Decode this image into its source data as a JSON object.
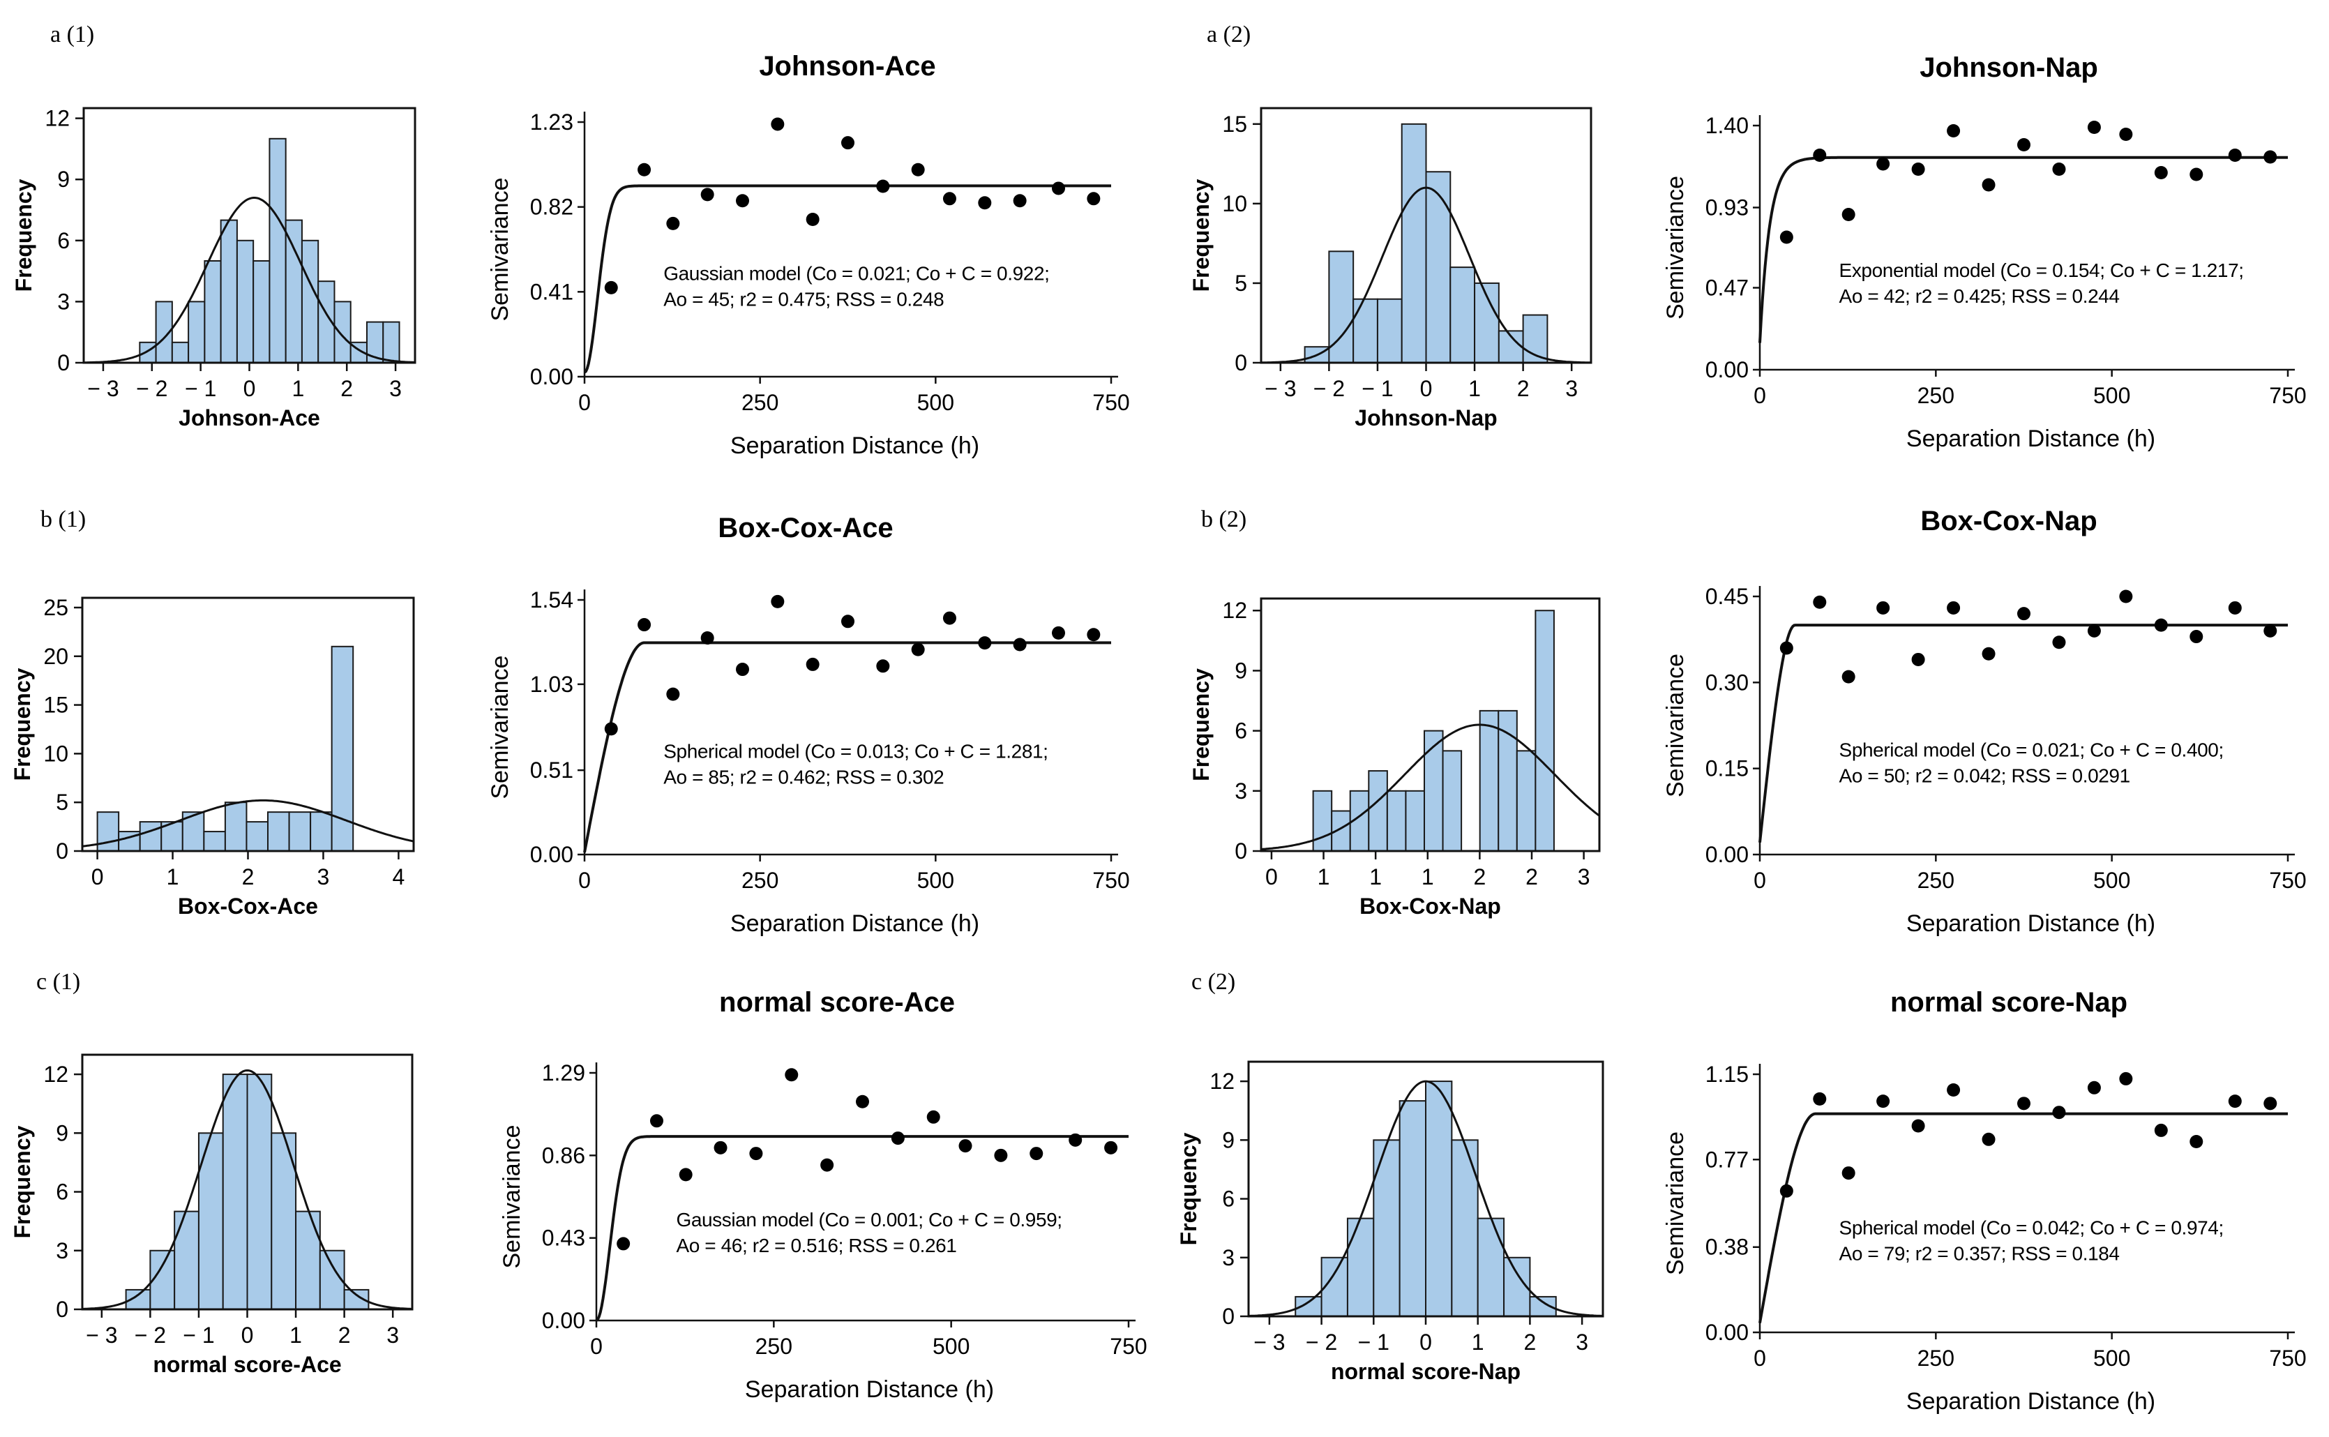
{
  "panel_labels": [
    "a (1)",
    "a (2)",
    "b (1)",
    "b (2)",
    "c (1)",
    "c (2)"
  ],
  "chart_data": [
    {
      "type": "bar",
      "id": "hist_johnson_ace",
      "xlabel": "Johnson-Ace",
      "ylabel": "Frequency",
      "xlim": [
        -3.4,
        3.4
      ],
      "ylim": [
        0,
        12.5
      ],
      "xticks": [
        -3,
        -2,
        -1,
        0,
        1,
        2,
        3
      ],
      "xtick_labels": [
        "− 3",
        "− 2",
        "− 1",
        "0",
        "1",
        "2",
        "3"
      ],
      "yticks": [
        0,
        3,
        6,
        9,
        12
      ],
      "ytick_labels": [
        "0",
        "3",
        "6",
        "9",
        "12"
      ],
      "bin_start": -2.25,
      "bin_width": 0.333,
      "values": [
        1,
        3,
        1,
        3,
        5,
        7,
        6,
        5,
        11,
        7,
        6,
        4,
        3,
        1,
        2,
        2
      ],
      "normal_fit": {
        "mean": 0.1,
        "sd": 0.95,
        "peak": 8.1
      }
    },
    {
      "type": "scatter",
      "id": "semi_johnson_ace",
      "title": "Johnson-Ace",
      "xlabel": "Separation Distance (h)",
      "ylabel": "Semivariance",
      "xlim": [
        0,
        750
      ],
      "ylim": [
        0,
        1.23
      ],
      "xticks": [
        0,
        250,
        500,
        750
      ],
      "xtick_labels": [
        "0",
        "250",
        "500",
        "750"
      ],
      "yticks": [
        0,
        0.41,
        0.82,
        1.23
      ],
      "ytick_labels": [
        "0.00",
        "0.41",
        "0.82",
        "1.23"
      ],
      "x": [
        38,
        85,
        126,
        175,
        225,
        275,
        325,
        375,
        425,
        475,
        520,
        570,
        620,
        675,
        725
      ],
      "y": [
        0.43,
        1.0,
        0.74,
        0.88,
        0.85,
        1.22,
        0.76,
        1.13,
        0.92,
        1.0,
        0.86,
        0.84,
        0.85,
        0.91,
        0.86
      ],
      "model": {
        "type": "gaussian",
        "nugget": 0.021,
        "sill": 0.922,
        "range": 45
      },
      "annotation": [
        "Gaussian model (Co = 0.021; Co + C = 0.922;",
        "Ao = 45; r2 = 0.475; RSS = 0.248"
      ]
    },
    {
      "type": "bar",
      "id": "hist_johnson_nap",
      "xlabel": "Johnson-Nap",
      "ylabel": "Frequency",
      "xlim": [
        -3.4,
        3.4
      ],
      "ylim": [
        0,
        16
      ],
      "xticks": [
        -3,
        -2,
        -1,
        0,
        1,
        2,
        3
      ],
      "xtick_labels": [
        "− 3",
        "− 2",
        "− 1",
        "0",
        "1",
        "2",
        "3"
      ],
      "yticks": [
        0,
        5,
        10,
        15
      ],
      "ytick_labels": [
        "0",
        "5",
        "10",
        "15"
      ],
      "bin_start": -2.5,
      "bin_width": 0.5,
      "values": [
        1,
        7,
        4,
        4,
        15,
        12,
        6,
        5,
        2,
        3
      ],
      "normal_fit": {
        "mean": 0.0,
        "sd": 0.9,
        "peak": 11
      }
    },
    {
      "type": "scatter",
      "id": "semi_johnson_nap",
      "title": "Johnson-Nap",
      "xlabel": "Separation Distance (h)",
      "ylabel": "Semivariance",
      "xlim": [
        0,
        750
      ],
      "ylim": [
        0,
        1.4
      ],
      "xticks": [
        0,
        250,
        500,
        750
      ],
      "xtick_labels": [
        "0",
        "250",
        "500",
        "750"
      ],
      "yticks": [
        0,
        0.47,
        0.93,
        1.4
      ],
      "ytick_labels": [
        "0.00",
        "0.47",
        "0.93",
        "1.40"
      ],
      "x": [
        38,
        85,
        126,
        175,
        225,
        275,
        325,
        375,
        425,
        475,
        520,
        570,
        620,
        675,
        725
      ],
      "y": [
        0.76,
        1.23,
        0.89,
        1.18,
        1.15,
        1.37,
        1.06,
        1.29,
        1.15,
        1.39,
        1.35,
        1.13,
        1.12,
        1.23,
        1.22
      ],
      "model": {
        "type": "exponential",
        "nugget": 0.154,
        "sill": 1.217,
        "range": 42
      },
      "annotation": [
        "Exponential model (Co = 0.154; Co + C = 1.217;",
        "Ao = 42; r2 = 0.425; RSS = 0.244"
      ]
    },
    {
      "type": "bar",
      "id": "hist_boxcox_ace",
      "xlabel": "Box-Cox-Ace",
      "ylabel": "Frequency",
      "xlim": [
        -0.2,
        4.2
      ],
      "ylim": [
        0,
        26
      ],
      "xticks": [
        0,
        1,
        2,
        3,
        4
      ],
      "xtick_labels": [
        "0",
        "1",
        "2",
        "3",
        "4"
      ],
      "yticks": [
        0,
        5,
        10,
        15,
        20,
        25
      ],
      "ytick_labels": [
        "0",
        "5",
        "10",
        "15",
        "20",
        "25"
      ],
      "bin_start": 0.0,
      "bin_width": 0.283,
      "values": [
        4,
        2,
        3,
        3,
        4,
        2,
        5,
        3,
        4,
        4,
        4,
        21
      ],
      "normal_fit": {
        "mean": 2.2,
        "sd": 1.1,
        "peak": 5.2
      }
    },
    {
      "type": "scatter",
      "id": "semi_boxcox_ace",
      "title": "Box-Cox-Ace",
      "xlabel": "Separation Distance (h)",
      "ylabel": "Semivariance",
      "xlim": [
        0,
        750
      ],
      "ylim": [
        0,
        1.54
      ],
      "xticks": [
        0,
        250,
        500,
        750
      ],
      "xtick_labels": [
        "0",
        "250",
        "500",
        "750"
      ],
      "yticks": [
        0,
        0.51,
        1.03,
        1.54
      ],
      "ytick_labels": [
        "0.00",
        "0.51",
        "1.03",
        "1.54"
      ],
      "x": [
        38,
        85,
        126,
        175,
        225,
        275,
        325,
        375,
        425,
        475,
        520,
        570,
        620,
        675,
        725
      ],
      "y": [
        0.76,
        1.39,
        0.97,
        1.31,
        1.12,
        1.53,
        1.15,
        1.41,
        1.14,
        1.24,
        1.43,
        1.28,
        1.27,
        1.34,
        1.33
      ],
      "model": {
        "type": "spherical",
        "nugget": 0.013,
        "sill": 1.281,
        "range": 85
      },
      "annotation": [
        "Spherical model (Co = 0.013; Co + C = 1.281;",
        "Ao = 85; r2 = 0.462; RSS = 0.302"
      ]
    },
    {
      "type": "bar",
      "id": "hist_boxcox_nap",
      "xlabel": "Box-Cox-Nap",
      "ylabel": "Frequency",
      "xlim": [
        -0.1,
        3.15
      ],
      "ylim": [
        0,
        12.6
      ],
      "xticks": [
        0,
        0.5,
        1,
        1.5,
        2,
        2.5,
        3
      ],
      "xtick_labels": [
        "0",
        "1",
        "1",
        "1",
        "2",
        "2",
        "3"
      ],
      "yticks": [
        0,
        3,
        6,
        9,
        12
      ],
      "ytick_labels": [
        "0",
        "3",
        "6",
        "9",
        "12"
      ],
      "bin_start": 0.4,
      "bin_width": 0.178,
      "values": [
        3,
        2,
        3,
        4,
        3,
        3,
        6,
        5,
        0,
        7,
        7,
        5,
        12
      ],
      "normal_fit": {
        "mean": 2.0,
        "sd": 0.72,
        "peak": 6.3
      }
    },
    {
      "type": "scatter",
      "id": "semi_boxcox_nap",
      "title": "Box-Cox-Nap",
      "xlabel": "Separation Distance (h)",
      "ylabel": "Semivariance",
      "xlim": [
        0,
        750
      ],
      "ylim": [
        0,
        0.45
      ],
      "xticks": [
        0,
        250,
        500,
        750
      ],
      "xtick_labels": [
        "0",
        "250",
        "500",
        "750"
      ],
      "yticks": [
        0,
        0.15,
        0.3,
        0.45
      ],
      "ytick_labels": [
        "0.00",
        "0.15",
        "0.30",
        "0.45"
      ],
      "x": [
        38,
        85,
        126,
        175,
        225,
        275,
        325,
        375,
        425,
        475,
        520,
        570,
        620,
        675,
        725
      ],
      "y": [
        0.36,
        0.44,
        0.31,
        0.43,
        0.34,
        0.43,
        0.35,
        0.42,
        0.37,
        0.39,
        0.45,
        0.4,
        0.38,
        0.43,
        0.39
      ],
      "model": {
        "type": "spherical",
        "nugget": 0.021,
        "sill": 0.4,
        "range": 50
      },
      "annotation": [
        "Spherical model (Co = 0.021; Co + C = 0.400;",
        "Ao = 50; r2 = 0.042; RSS = 0.0291"
      ]
    },
    {
      "type": "bar",
      "id": "hist_normal_ace",
      "xlabel": "normal score-Ace",
      "ylabel": "Frequency",
      "xlim": [
        -3.4,
        3.4
      ],
      "ylim": [
        0,
        13
      ],
      "xticks": [
        -3,
        -2,
        -1,
        0,
        1,
        2,
        3
      ],
      "xtick_labels": [
        "− 3",
        "− 2",
        "− 1",
        "0",
        "1",
        "2",
        "3"
      ],
      "yticks": [
        0,
        3,
        6,
        9,
        12
      ],
      "ytick_labels": [
        "0",
        "3",
        "6",
        "9",
        "12"
      ],
      "bin_start": -2.5,
      "bin_width": 0.5,
      "values": [
        1,
        3,
        5,
        9,
        12,
        12,
        9,
        5,
        3,
        1
      ],
      "normal_fit": {
        "mean": 0.0,
        "sd": 0.95,
        "peak": 12.2
      }
    },
    {
      "type": "scatter",
      "id": "semi_normal_ace",
      "title": "normal score-Ace",
      "xlabel": "Separation Distance (h)",
      "ylabel": "Semivariance",
      "xlim": [
        0,
        750
      ],
      "ylim": [
        0,
        1.29
      ],
      "xticks": [
        0,
        250,
        500,
        750
      ],
      "xtick_labels": [
        "0",
        "250",
        "500",
        "750"
      ],
      "yticks": [
        0,
        0.43,
        0.86,
        1.29
      ],
      "ytick_labels": [
        "0.00",
        "0.43",
        "0.86",
        "1.29"
      ],
      "x": [
        38,
        85,
        126,
        175,
        225,
        275,
        325,
        375,
        425,
        475,
        520,
        570,
        620,
        675,
        725
      ],
      "y": [
        0.4,
        1.04,
        0.76,
        0.9,
        0.87,
        1.28,
        0.81,
        1.14,
        0.95,
        1.06,
        0.91,
        0.86,
        0.87,
        0.94,
        0.9
      ],
      "model": {
        "type": "gaussian",
        "nugget": 0.001,
        "sill": 0.959,
        "range": 46
      },
      "annotation": [
        "Gaussian model (Co = 0.001; Co + C = 0.959;",
        "Ao = 46; r2 = 0.516; RSS = 0.261"
      ]
    },
    {
      "type": "bar",
      "id": "hist_normal_nap",
      "xlabel": "normal score-Nap",
      "ylabel": "Frequency",
      "xlim": [
        -3.4,
        3.4
      ],
      "ylim": [
        0,
        13
      ],
      "xticks": [
        -3,
        -2,
        -1,
        0,
        1,
        2,
        3
      ],
      "xtick_labels": [
        "− 3",
        "− 2",
        "− 1",
        "0",
        "1",
        "2",
        "3"
      ],
      "yticks": [
        0,
        3,
        6,
        9,
        12
      ],
      "ytick_labels": [
        "0",
        "3",
        "6",
        "9",
        "12"
      ],
      "bin_start": -2.5,
      "bin_width": 0.5,
      "values": [
        1,
        3,
        5,
        9,
        11,
        12,
        9,
        5,
        3,
        1
      ],
      "normal_fit": {
        "mean": 0.0,
        "sd": 0.95,
        "peak": 12.0
      }
    },
    {
      "type": "scatter",
      "id": "semi_normal_nap",
      "title": "normal score-Nap",
      "xlabel": "Separation Distance (h)",
      "ylabel": "Semivariance",
      "xlim": [
        0,
        750
      ],
      "ylim": [
        0,
        1.15
      ],
      "xticks": [
        0,
        250,
        500,
        750
      ],
      "xtick_labels": [
        "0",
        "250",
        "500",
        "750"
      ],
      "yticks": [
        0,
        0.38,
        0.77,
        1.15
      ],
      "ytick_labels": [
        "0.00",
        "0.38",
        "0.77",
        "1.15"
      ],
      "x": [
        38,
        85,
        126,
        175,
        225,
        275,
        325,
        375,
        425,
        475,
        520,
        570,
        620,
        675,
        725
      ],
      "y": [
        0.63,
        1.04,
        0.71,
        1.03,
        0.92,
        1.08,
        0.86,
        1.02,
        0.98,
        1.09,
        1.13,
        0.9,
        0.85,
        1.03,
        1.02
      ],
      "model": {
        "type": "spherical",
        "nugget": 0.042,
        "sill": 0.974,
        "range": 79
      },
      "annotation": [
        "Spherical model (Co = 0.042; Co + C = 0.974;",
        "Ao = 79; r2 = 0.357; RSS = 0.184"
      ]
    }
  ]
}
